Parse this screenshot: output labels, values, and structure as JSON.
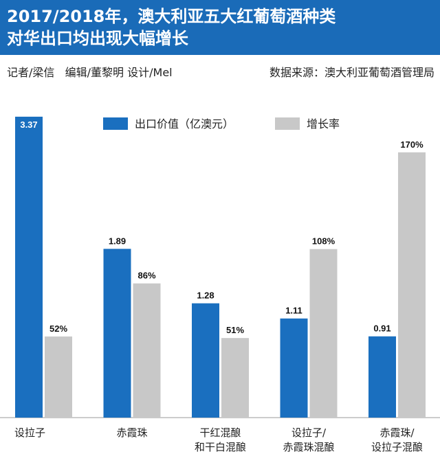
{
  "title": "2017/2018年，澳大利亚五大红葡萄酒种类\n对华出口均出现大幅增长",
  "credits": "记者/梁信   编辑/董黎明 设计/Mel",
  "source": "数据来源：澳大利亚葡萄酒管理局",
  "chart_data": {
    "type": "bar",
    "categories": [
      "设拉子",
      "赤霞珠",
      "干红混酿\n和干白混酿",
      "设拉子/\n赤霞珠混酿",
      "赤霞珠/\n设拉子混酿"
    ],
    "series": [
      {
        "name": "出口价值（亿澳元）",
        "color": "#1a6fbf",
        "values": [
          3.37,
          1.89,
          1.28,
          1.11,
          0.91
        ]
      },
      {
        "name": "增长率",
        "color": "#c8c8c8",
        "axis": "y2",
        "values": [
          52,
          86,
          51,
          108,
          170
        ],
        "value_labels": [
          "52%",
          "86%",
          "51%",
          "108%",
          "170%"
        ]
      }
    ],
    "ylim": [
      0,
      3.6
    ],
    "y2lim": [
      0,
      206
    ]
  }
}
